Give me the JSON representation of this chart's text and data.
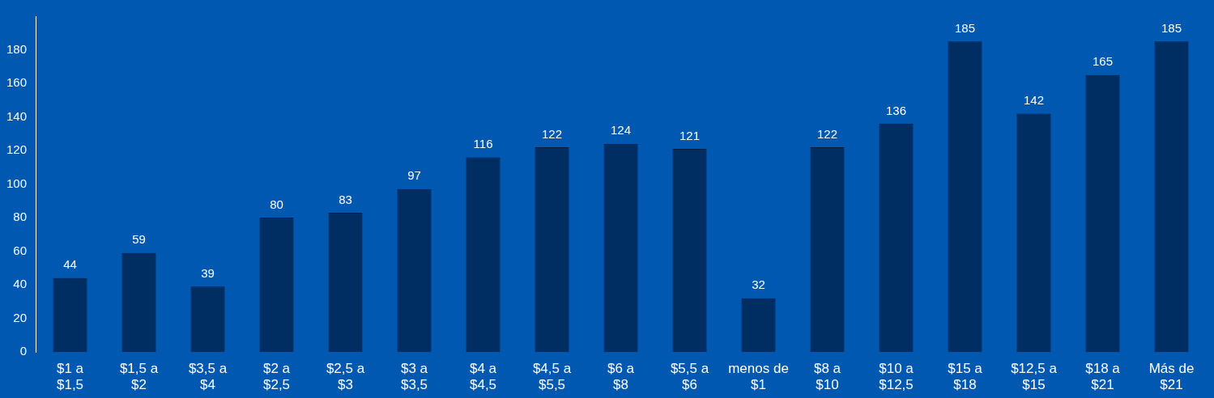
{
  "chart_data": {
    "type": "bar",
    "categories": [
      "$1 a $1,5",
      "$1,5 a $2",
      "$3,5 a $4",
      "$2 a $2,5",
      "$2,5 a $3",
      "$3 a $3,5",
      "$4 a $4,5",
      "$4,5 a $5,5",
      "$6 a $8",
      "$5,5 a $6",
      "menos de $1",
      "$8 a $10",
      "$10 a $12,5",
      "$15 a $18",
      "$12,5 a $15",
      "$18 a $21",
      "Más de $21"
    ],
    "values": [
      44,
      59,
      39,
      80,
      83,
      97,
      116,
      122,
      124,
      121,
      32,
      122,
      136,
      185,
      142,
      165,
      185
    ],
    "color": "#002d62",
    "ylim": [
      0,
      200
    ],
    "yticks": [
      0,
      20,
      40,
      60,
      80,
      100,
      120,
      140,
      160,
      180
    ],
    "grid": false,
    "legend": false,
    "data_labels": true
  }
}
